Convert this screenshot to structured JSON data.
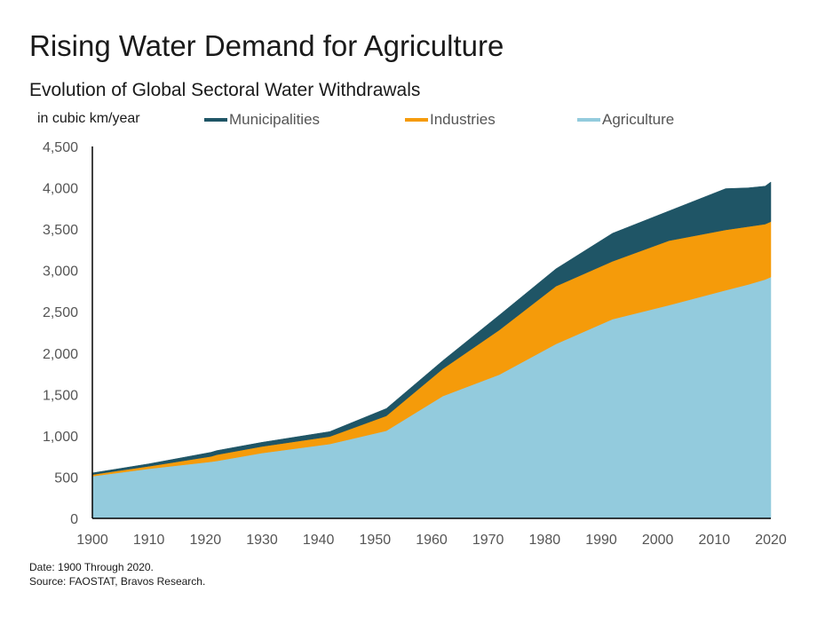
{
  "header": {
    "title": "Rising Water Demand for Agriculture",
    "subtitle": "Evolution of Global Sectoral Water Withdrawals",
    "unit_label": "in cubic km/year"
  },
  "legend": [
    {
      "label": "Municipalities",
      "color": "#1f5566"
    },
    {
      "label": "Industries",
      "color": "#f59b0a"
    },
    {
      "label": "Agriculture",
      "color": "#93cbdd"
    }
  ],
  "notes": {
    "date": "Date: 1900 Through 2020.",
    "source": "Source: FAOSTAT, Bravos Research."
  },
  "chart_data": {
    "type": "area",
    "stacked": true,
    "title": "Rising Water Demand for Agriculture",
    "subtitle": "Evolution of Global Sectoral Water Withdrawals",
    "ylabel": "in cubic km/year",
    "xlabel": "",
    "x": [
      1900,
      1910,
      1921,
      1922,
      1930,
      1942,
      1952,
      1962,
      1972,
      1982,
      1992,
      2002,
      2012,
      2016,
      2019,
      2020
    ],
    "series": [
      {
        "name": "Agriculture",
        "color": "#93cbdd",
        "values": [
          510,
          600,
          685,
          695,
          790,
          900,
          1060,
          1480,
          1740,
          2110,
          2410,
          2580,
          2760,
          2830,
          2890,
          2920
        ]
      },
      {
        "name": "Industries",
        "color": "#f59b0a",
        "values": [
          20,
          30,
          65,
          75,
          80,
          90,
          180,
          330,
          540,
          700,
          700,
          780,
          730,
          700,
          670,
          670
        ]
      },
      {
        "name": "Municipalities",
        "color": "#1f5566",
        "values": [
          20,
          30,
          50,
          50,
          50,
          60,
          90,
          100,
          180,
          210,
          340,
          360,
          500,
          470,
          460,
          480
        ]
      }
    ],
    "xlim": [
      1900,
      2020
    ],
    "ylim": [
      0,
      4500
    ],
    "xticks": [
      "1900",
      "1910",
      "1920",
      "1930",
      "1940",
      "1950",
      "1960",
      "1970",
      "1980",
      "1990",
      "2000",
      "2010",
      "2020"
    ],
    "yticks": [
      "0",
      "500",
      "1,000",
      "1,500",
      "2,000",
      "2,500",
      "3,000",
      "3,500",
      "4,000",
      "4,500"
    ],
    "grid": false,
    "legend_position": "top"
  }
}
